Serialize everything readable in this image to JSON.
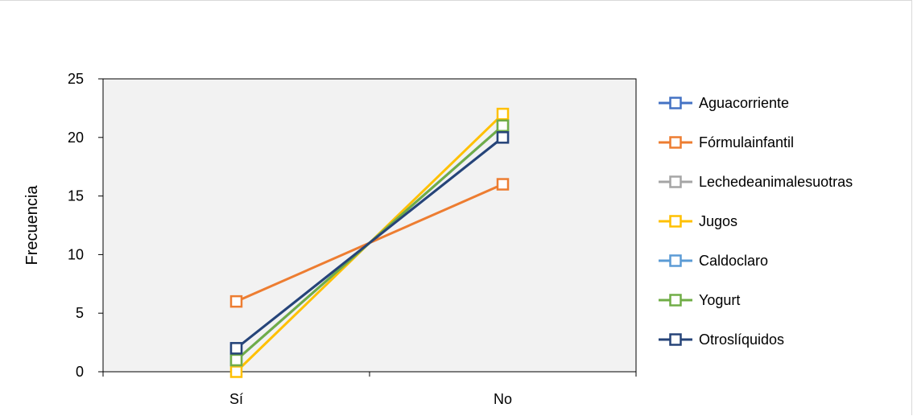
{
  "chart_data": {
    "type": "line",
    "categories": [
      "Sí",
      "No"
    ],
    "ylabel": "Frecuencia",
    "xlabel": "",
    "ylim": [
      0,
      25
    ],
    "yticks": [
      "0",
      "5",
      "10",
      "15",
      "20",
      "25"
    ],
    "grid": false,
    "legend_position": "right",
    "plot_background": "#f2f2f2",
    "series": [
      {
        "name": "Aguacorriente",
        "values": [
          2,
          20
        ],
        "color": "#4472c4"
      },
      {
        "name": "Fórmulainfantil",
        "values": [
          6,
          16
        ],
        "color": "#ed7d31"
      },
      {
        "name": "Lechedeanimalesuotras",
        "values": [
          1,
          21
        ],
        "color": "#a5a5a5"
      },
      {
        "name": "Jugos",
        "values": [
          0,
          22
        ],
        "color": "#ffc000"
      },
      {
        "name": "Caldoclaro",
        "values": [
          1,
          21
        ],
        "color": "#5b9bd5"
      },
      {
        "name": "Yogurt",
        "values": [
          1,
          21
        ],
        "color": "#70ad47"
      },
      {
        "name": "Otroslíquidos",
        "values": [
          2,
          20
        ],
        "color": "#264478"
      }
    ]
  }
}
